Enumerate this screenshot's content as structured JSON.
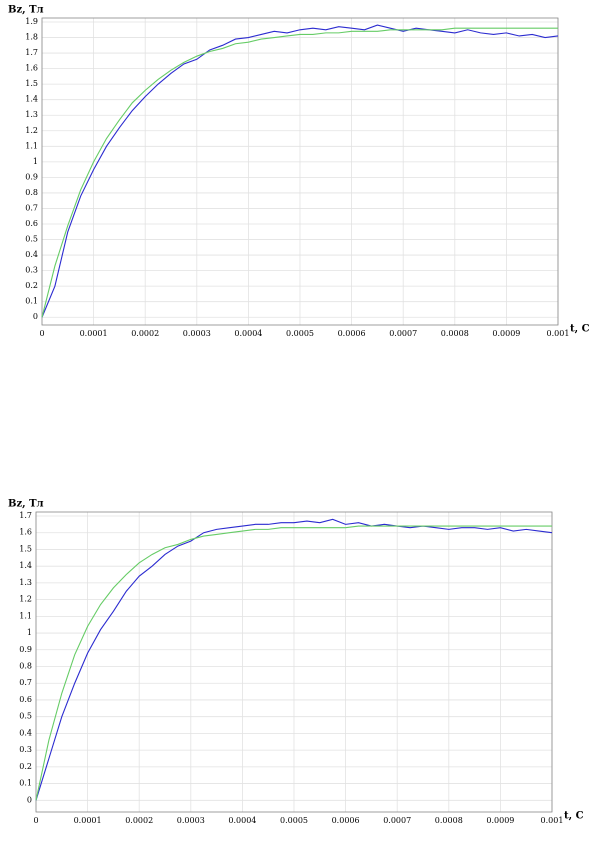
{
  "chart_data": [
    {
      "type": "line",
      "y_label": "Bz, Тл",
      "x_label": "t, C",
      "x": [
        0,
        2.5e-05,
        5e-05,
        7.5e-05,
        0.0001,
        0.000125,
        0.00015,
        0.000175,
        0.0002,
        0.000225,
        0.00025,
        0.000275,
        0.0003,
        0.000325,
        0.00035,
        0.000375,
        0.0004,
        0.000425,
        0.00045,
        0.000475,
        0.0005,
        0.000525,
        0.00055,
        0.000575,
        0.0006,
        0.000625,
        0.00065,
        0.000675,
        0.0007,
        0.000725,
        0.00075,
        0.000775,
        0.0008,
        0.000825,
        0.00085,
        0.000875,
        0.0009,
        0.000925,
        0.00095,
        0.000975,
        0.001
      ],
      "series": [
        {
          "color": "#2b2bd0",
          "values": [
            0,
            0.2,
            0.55,
            0.78,
            0.95,
            1.1,
            1.22,
            1.33,
            1.42,
            1.5,
            1.57,
            1.63,
            1.66,
            1.72,
            1.75,
            1.79,
            1.8,
            1.82,
            1.84,
            1.83,
            1.85,
            1.86,
            1.85,
            1.87,
            1.86,
            1.85,
            1.88,
            1.86,
            1.84,
            1.86,
            1.85,
            1.84,
            1.83,
            1.85,
            1.83,
            1.82,
            1.83,
            1.81,
            1.82,
            1.8,
            1.81
          ]
        },
        {
          "color": "#66cc66",
          "values": [
            0,
            0.33,
            0.59,
            0.82,
            1.0,
            1.15,
            1.27,
            1.38,
            1.46,
            1.53,
            1.59,
            1.64,
            1.68,
            1.71,
            1.73,
            1.76,
            1.77,
            1.79,
            1.8,
            1.81,
            1.82,
            1.82,
            1.83,
            1.83,
            1.84,
            1.84,
            1.84,
            1.85,
            1.85,
            1.85,
            1.85,
            1.85,
            1.86,
            1.86,
            1.86,
            1.86,
            1.86,
            1.86,
            1.86,
            1.86,
            1.86
          ]
        }
      ],
      "xlim": [
        0,
        0.001
      ],
      "xticks": [
        0,
        0.0001,
        0.0002,
        0.0003,
        0.0004,
        0.0005,
        0.0006,
        0.0007,
        0.0008,
        0.0009,
        0.001
      ],
      "ylim": [
        -0.05,
        1.9
      ],
      "yticks": [
        0,
        0.1,
        0.2,
        0.3,
        0.4,
        0.5,
        0.6,
        0.7,
        0.8,
        0.9,
        1,
        1.1,
        1.2,
        1.3,
        1.4,
        1.5,
        1.6,
        1.7,
        1.8,
        1.9
      ],
      "grid": true
    },
    {
      "type": "line",
      "y_label": "Bz, Тл",
      "x_label": "t, C",
      "x": [
        0,
        2.5e-05,
        5e-05,
        7.5e-05,
        0.0001,
        0.000125,
        0.00015,
        0.000175,
        0.0002,
        0.000225,
        0.00025,
        0.000275,
        0.0003,
        0.000325,
        0.00035,
        0.000375,
        0.0004,
        0.000425,
        0.00045,
        0.000475,
        0.0005,
        0.000525,
        0.00055,
        0.000575,
        0.0006,
        0.000625,
        0.00065,
        0.000675,
        0.0007,
        0.000725,
        0.00075,
        0.000775,
        0.0008,
        0.000825,
        0.00085,
        0.000875,
        0.0009,
        0.000925,
        0.00095,
        0.000975,
        0.001
      ],
      "series": [
        {
          "color": "#2b2bd0",
          "values": [
            0,
            0.25,
            0.5,
            0.7,
            0.88,
            1.02,
            1.13,
            1.25,
            1.34,
            1.4,
            1.47,
            1.52,
            1.55,
            1.6,
            1.62,
            1.63,
            1.64,
            1.65,
            1.65,
            1.66,
            1.66,
            1.67,
            1.66,
            1.68,
            1.65,
            1.66,
            1.64,
            1.65,
            1.64,
            1.63,
            1.64,
            1.63,
            1.62,
            1.63,
            1.63,
            1.62,
            1.63,
            1.61,
            1.62,
            1.61,
            1.6
          ]
        },
        {
          "color": "#66cc66",
          "values": [
            0,
            0.36,
            0.64,
            0.87,
            1.04,
            1.17,
            1.27,
            1.35,
            1.42,
            1.47,
            1.51,
            1.53,
            1.56,
            1.58,
            1.59,
            1.6,
            1.61,
            1.62,
            1.62,
            1.63,
            1.63,
            1.63,
            1.63,
            1.63,
            1.63,
            1.64,
            1.64,
            1.64,
            1.64,
            1.64,
            1.64,
            1.64,
            1.64,
            1.64,
            1.64,
            1.64,
            1.64,
            1.64,
            1.64,
            1.64,
            1.64
          ]
        }
      ],
      "xlim": [
        0,
        0.001
      ],
      "xticks": [
        0,
        0.0001,
        0.0002,
        0.0003,
        0.0004,
        0.0005,
        0.0006,
        0.0007,
        0.0008,
        0.0009,
        0.001
      ],
      "ylim": [
        -0.07,
        1.7
      ],
      "yticks": [
        0,
        0.1,
        0.2,
        0.3,
        0.4,
        0.5,
        0.6,
        0.7,
        0.8,
        0.9,
        1,
        1.1,
        1.2,
        1.3,
        1.4,
        1.5,
        1.6,
        1.7
      ],
      "grid": true
    }
  ]
}
